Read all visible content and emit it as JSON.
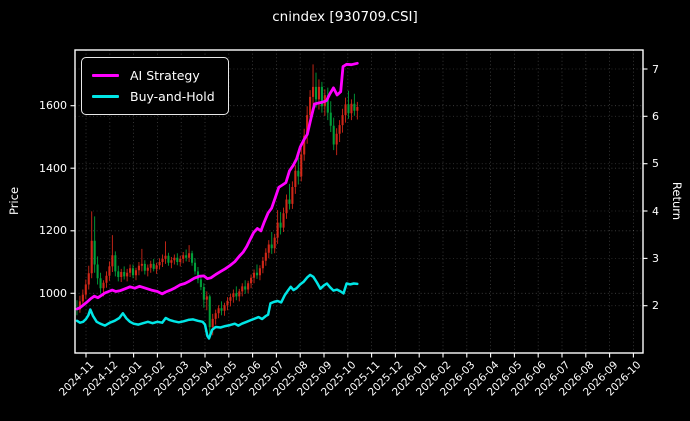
{
  "title": "cnindex [930709.CSI]",
  "legend": {
    "items": [
      {
        "label": "AI Strategy",
        "color": "#ff00ff"
      },
      {
        "label": "Buy-and-Hold",
        "color": "#00e6e6"
      }
    ]
  },
  "chart_data": {
    "type": "candlestick+line",
    "title": "cnindex [930709.CSI]",
    "grid": true,
    "legend_position": "upper left",
    "price_axis": {
      "label": "Price",
      "ticks": [
        1000,
        1200,
        1400,
        1600
      ],
      "side": "left"
    },
    "return_axis": {
      "label": "Return",
      "ticks": [
        2,
        3,
        4,
        5,
        6,
        7
      ],
      "side": "right"
    },
    "x_axis": {
      "unit": "months since 2024-11",
      "tick_labels": [
        "2024-11",
        "2024-12",
        "2025-01",
        "2025-02",
        "2025-03",
        "2025-04",
        "2025-05",
        "2025-06",
        "2025-07",
        "2025-08",
        "2025-09",
        "2025-10",
        "2025-11",
        "2025-12",
        "2026-01",
        "2026-02",
        "2026-03",
        "2026-04",
        "2026-05",
        "2026-06",
        "2026-07",
        "2026-08",
        "2026-09",
        "2026-10"
      ]
    },
    "candles": {
      "up_color": "#dd2a1a",
      "down_color": "#00a83e",
      "t_start_months": -0.38,
      "t_step_months": 0.124,
      "ohlc": [
        [
          952,
          978,
          930,
          948
        ],
        [
          948,
          992,
          938,
          974
        ],
        [
          974,
          1012,
          958,
          996
        ],
        [
          996,
          1044,
          982,
          1028
        ],
        [
          1028,
          1088,
          1012,
          1064
        ],
        [
          1064,
          1262,
          1048,
          1168
        ],
        [
          1168,
          1246,
          1066,
          1092
        ],
        [
          1092,
          1118,
          1028,
          1048
        ],
        [
          1048,
          1066,
          1000,
          1016
        ],
        [
          1016,
          1042,
          990,
          1034
        ],
        [
          1034,
          1070,
          1018,
          1056
        ],
        [
          1056,
          1102,
          1040,
          1086
        ],
        [
          1086,
          1186,
          1068,
          1122
        ],
        [
          1122,
          1134,
          1054,
          1070
        ],
        [
          1070,
          1088,
          1038,
          1052
        ],
        [
          1052,
          1078,
          1036,
          1068
        ],
        [
          1068,
          1086,
          1044,
          1054
        ],
        [
          1054,
          1078,
          1038,
          1066
        ],
        [
          1066,
          1092,
          1052,
          1080
        ],
        [
          1080,
          1092,
          1048,
          1058
        ],
        [
          1058,
          1082,
          1042,
          1074
        ],
        [
          1074,
          1100,
          1058,
          1088
        ],
        [
          1088,
          1142,
          1070,
          1094
        ],
        [
          1094,
          1106,
          1060,
          1072
        ],
        [
          1072,
          1092,
          1054,
          1082
        ],
        [
          1082,
          1104,
          1066,
          1094
        ],
        [
          1094,
          1110,
          1070,
          1078
        ],
        [
          1078,
          1098,
          1062,
          1090
        ],
        [
          1090,
          1112,
          1076,
          1100
        ],
        [
          1100,
          1124,
          1084,
          1110
        ],
        [
          1110,
          1166,
          1094,
          1120
        ],
        [
          1120,
          1130,
          1088,
          1098
        ],
        [
          1098,
          1116,
          1080,
          1106
        ],
        [
          1106,
          1124,
          1092,
          1114
        ],
        [
          1114,
          1128,
          1090,
          1100
        ],
        [
          1100,
          1120,
          1086,
          1110
        ],
        [
          1110,
          1132,
          1096,
          1122
        ],
        [
          1122,
          1140,
          1102,
          1114
        ],
        [
          1114,
          1154,
          1100,
          1128
        ],
        [
          1128,
          1136,
          1088,
          1098
        ],
        [
          1098,
          1112,
          1060,
          1070
        ],
        [
          1070,
          1084,
          1032,
          1044
        ],
        [
          1044,
          1058,
          1010,
          1020
        ],
        [
          1020,
          1032,
          954,
          980
        ],
        [
          980,
          1006,
          946,
          990
        ],
        [
          990,
          996,
          868,
          892
        ],
        [
          892,
          934,
          866,
          918
        ],
        [
          918,
          948,
          900,
          936
        ],
        [
          936,
          962,
          920,
          952
        ],
        [
          952,
          974,
          930,
          944
        ],
        [
          944,
          970,
          928,
          962
        ],
        [
          962,
          988,
          946,
          976
        ],
        [
          976,
          998,
          958,
          988
        ],
        [
          988,
          1012,
          970,
          1000
        ],
        [
          1000,
          1022,
          978,
          990
        ],
        [
          990,
          1014,
          974,
          1006
        ],
        [
          1006,
          1032,
          990,
          1022
        ],
        [
          1022,
          1042,
          998,
          1012
        ],
        [
          1012,
          1040,
          1000,
          1032
        ],
        [
          1032,
          1060,
          1016,
          1050
        ],
        [
          1050,
          1076,
          1032,
          1066
        ],
        [
          1066,
          1092,
          1046,
          1058
        ],
        [
          1058,
          1090,
          1042,
          1080
        ],
        [
          1080,
          1116,
          1064,
          1104
        ],
        [
          1104,
          1144,
          1088,
          1130
        ],
        [
          1130,
          1170,
          1112,
          1156
        ],
        [
          1156,
          1196,
          1126,
          1144
        ],
        [
          1144,
          1190,
          1128,
          1178
        ],
        [
          1178,
          1266,
          1158,
          1226
        ],
        [
          1226,
          1260,
          1188,
          1210
        ],
        [
          1210,
          1274,
          1196,
          1256
        ],
        [
          1256,
          1316,
          1238,
          1300
        ],
        [
          1300,
          1350,
          1268,
          1286
        ],
        [
          1286,
          1358,
          1270,
          1340
        ],
        [
          1340,
          1410,
          1318,
          1392
        ],
        [
          1392,
          1450,
          1348,
          1374
        ],
        [
          1374,
          1466,
          1358,
          1444
        ],
        [
          1444,
          1526,
          1424,
          1504
        ],
        [
          1504,
          1598,
          1478,
          1570
        ],
        [
          1570,
          1650,
          1540,
          1628
        ],
        [
          1628,
          1732,
          1586,
          1660
        ],
        [
          1660,
          1706,
          1594,
          1620
        ],
        [
          1620,
          1684,
          1588,
          1660
        ],
        [
          1660,
          1676,
          1578,
          1598
        ],
        [
          1598,
          1652,
          1568,
          1634
        ],
        [
          1634,
          1658,
          1554,
          1578
        ],
        [
          1578,
          1614,
          1516,
          1536
        ],
        [
          1536,
          1562,
          1458,
          1476
        ],
        [
          1476,
          1528,
          1442,
          1510
        ],
        [
          1510,
          1554,
          1484,
          1538
        ],
        [
          1538,
          1590,
          1514,
          1570
        ],
        [
          1570,
          1626,
          1546,
          1604
        ],
        [
          1604,
          1648,
          1558,
          1576
        ],
        [
          1576,
          1620,
          1554,
          1606
        ],
        [
          1606,
          1638,
          1568,
          1584
        ],
        [
          1584,
          1612,
          1556,
          1596
        ]
      ]
    },
    "series": [
      {
        "name": "AI Strategy",
        "color": "#ff00ff",
        "axis": "return",
        "linewidth": 2.8,
        "points": [
          [
            -0.38,
            1.93
          ],
          [
            -0.25,
            1.96
          ],
          [
            -0.1,
            2.02
          ],
          [
            0.05,
            2.08
          ],
          [
            0.2,
            2.15
          ],
          [
            0.35,
            2.2
          ],
          [
            0.5,
            2.17
          ],
          [
            0.65,
            2.22
          ],
          [
            0.8,
            2.27
          ],
          [
            0.95,
            2.3
          ],
          [
            1.1,
            2.33
          ],
          [
            1.25,
            2.3
          ],
          [
            1.45,
            2.32
          ],
          [
            1.65,
            2.36
          ],
          [
            1.85,
            2.4
          ],
          [
            2.05,
            2.37
          ],
          [
            2.25,
            2.41
          ],
          [
            2.5,
            2.37
          ],
          [
            2.75,
            2.33
          ],
          [
            3.0,
            2.3
          ],
          [
            3.2,
            2.25
          ],
          [
            3.35,
            2.29
          ],
          [
            3.55,
            2.33
          ],
          [
            3.75,
            2.38
          ],
          [
            3.95,
            2.44
          ],
          [
            4.15,
            2.47
          ],
          [
            4.35,
            2.52
          ],
          [
            4.55,
            2.58
          ],
          [
            4.75,
            2.62
          ],
          [
            4.95,
            2.63
          ],
          [
            5.1,
            2.57
          ],
          [
            5.25,
            2.59
          ],
          [
            5.45,
            2.66
          ],
          [
            5.65,
            2.72
          ],
          [
            5.85,
            2.78
          ],
          [
            6.05,
            2.85
          ],
          [
            6.25,
            2.93
          ],
          [
            6.45,
            3.05
          ],
          [
            6.6,
            3.13
          ],
          [
            6.75,
            3.25
          ],
          [
            6.9,
            3.4
          ],
          [
            7.05,
            3.55
          ],
          [
            7.2,
            3.63
          ],
          [
            7.35,
            3.58
          ],
          [
            7.5,
            3.78
          ],
          [
            7.65,
            3.96
          ],
          [
            7.8,
            4.06
          ],
          [
            7.95,
            4.28
          ],
          [
            8.1,
            4.5
          ],
          [
            8.25,
            4.55
          ],
          [
            8.4,
            4.6
          ],
          [
            8.55,
            4.85
          ],
          [
            8.7,
            4.96
          ],
          [
            8.85,
            5.1
          ],
          [
            9.0,
            5.35
          ],
          [
            9.15,
            5.5
          ],
          [
            9.3,
            5.62
          ],
          [
            9.45,
            5.95
          ],
          [
            9.6,
            6.26
          ],
          [
            9.75,
            6.28
          ],
          [
            9.95,
            6.3
          ],
          [
            10.1,
            6.33
          ],
          [
            10.25,
            6.48
          ],
          [
            10.4,
            6.6
          ],
          [
            10.55,
            6.45
          ],
          [
            10.7,
            6.52
          ],
          [
            10.8,
            7.05
          ],
          [
            10.95,
            7.1
          ],
          [
            11.15,
            7.09
          ],
          [
            11.4,
            7.12
          ]
        ]
      },
      {
        "name": "Buy-and-Hold",
        "color": "#00e6e6",
        "axis": "return",
        "linewidth": 2.5,
        "points": [
          [
            -0.38,
            1.68
          ],
          [
            -0.25,
            1.64
          ],
          [
            -0.12,
            1.66
          ],
          [
            0.0,
            1.72
          ],
          [
            0.1,
            1.8
          ],
          [
            0.18,
            1.92
          ],
          [
            0.3,
            1.78
          ],
          [
            0.45,
            1.66
          ],
          [
            0.6,
            1.62
          ],
          [
            0.8,
            1.58
          ],
          [
            1.0,
            1.64
          ],
          [
            1.2,
            1.68
          ],
          [
            1.4,
            1.74
          ],
          [
            1.55,
            1.84
          ],
          [
            1.7,
            1.73
          ],
          [
            1.85,
            1.66
          ],
          [
            2.0,
            1.62
          ],
          [
            2.2,
            1.6
          ],
          [
            2.4,
            1.63
          ],
          [
            2.6,
            1.66
          ],
          [
            2.8,
            1.63
          ],
          [
            3.0,
            1.66
          ],
          [
            3.2,
            1.64
          ],
          [
            3.35,
            1.74
          ],
          [
            3.5,
            1.7
          ],
          [
            3.7,
            1.67
          ],
          [
            3.9,
            1.65
          ],
          [
            4.1,
            1.67
          ],
          [
            4.3,
            1.7
          ],
          [
            4.5,
            1.71
          ],
          [
            4.7,
            1.68
          ],
          [
            4.9,
            1.66
          ],
          [
            5.0,
            1.6
          ],
          [
            5.1,
            1.36
          ],
          [
            5.17,
            1.31
          ],
          [
            5.3,
            1.49
          ],
          [
            5.45,
            1.55
          ],
          [
            5.65,
            1.54
          ],
          [
            5.85,
            1.57
          ],
          [
            6.05,
            1.59
          ],
          [
            6.25,
            1.62
          ],
          [
            6.4,
            1.58
          ],
          [
            6.55,
            1.62
          ],
          [
            6.75,
            1.66
          ],
          [
            6.95,
            1.7
          ],
          [
            7.1,
            1.73
          ],
          [
            7.25,
            1.76
          ],
          [
            7.4,
            1.72
          ],
          [
            7.55,
            1.78
          ],
          [
            7.65,
            1.81
          ],
          [
            7.75,
            2.05
          ],
          [
            7.9,
            2.08
          ],
          [
            8.05,
            2.1
          ],
          [
            8.2,
            2.07
          ],
          [
            8.35,
            2.22
          ],
          [
            8.5,
            2.33
          ],
          [
            8.6,
            2.4
          ],
          [
            8.72,
            2.33
          ],
          [
            8.85,
            2.37
          ],
          [
            9.0,
            2.45
          ],
          [
            9.15,
            2.51
          ],
          [
            9.3,
            2.6
          ],
          [
            9.42,
            2.65
          ],
          [
            9.55,
            2.61
          ],
          [
            9.7,
            2.49
          ],
          [
            9.85,
            2.36
          ],
          [
            10.0,
            2.43
          ],
          [
            10.12,
            2.47
          ],
          [
            10.25,
            2.39
          ],
          [
            10.4,
            2.32
          ],
          [
            10.55,
            2.34
          ],
          [
            10.7,
            2.3
          ],
          [
            10.82,
            2.26
          ],
          [
            10.95,
            2.47
          ],
          [
            11.1,
            2.45
          ],
          [
            11.25,
            2.47
          ],
          [
            11.4,
            2.46
          ]
        ]
      }
    ]
  }
}
